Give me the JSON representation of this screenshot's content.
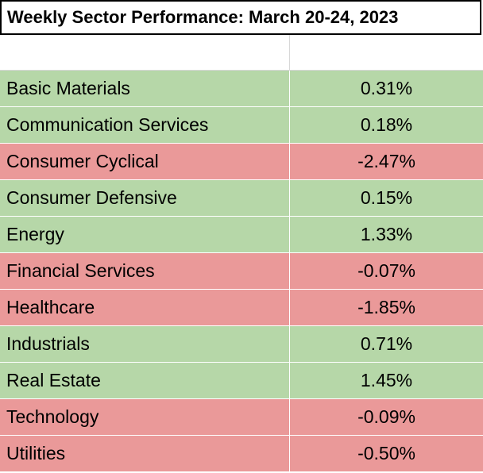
{
  "colors": {
    "positive": "#b6d7a8",
    "negative": "#ea9999"
  },
  "chart_data": {
    "type": "table",
    "title": "Weekly Sector Performance: March 20-24, 2023",
    "columns": [
      "",
      ""
    ],
    "rows": [
      {
        "sector": "Basic Materials",
        "value": 0.31,
        "display": "0.31%"
      },
      {
        "sector": "Communication Services",
        "value": 0.18,
        "display": "0.18%"
      },
      {
        "sector": "Consumer Cyclical",
        "value": -2.47,
        "display": "-2.47%"
      },
      {
        "sector": "Consumer Defensive",
        "value": 0.15,
        "display": "0.15%"
      },
      {
        "sector": "Energy",
        "value": 1.33,
        "display": "1.33%"
      },
      {
        "sector": "Financial Services",
        "value": -0.07,
        "display": "-0.07%"
      },
      {
        "sector": "Healthcare",
        "value": -1.85,
        "display": "-1.85%"
      },
      {
        "sector": "Industrials",
        "value": 0.71,
        "display": "0.71%"
      },
      {
        "sector": "Real Estate",
        "value": 1.45,
        "display": "1.45%"
      },
      {
        "sector": "Technology",
        "value": -0.09,
        "display": "-0.09%"
      },
      {
        "sector": "Utilities",
        "value": -0.5,
        "display": "-0.50%"
      }
    ]
  }
}
